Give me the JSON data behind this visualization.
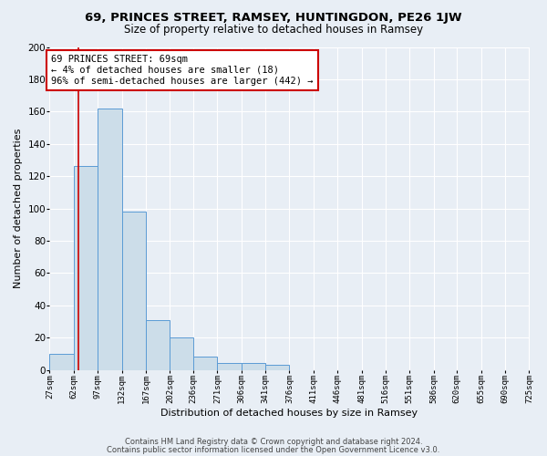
{
  "title1": "69, PRINCES STREET, RAMSEY, HUNTINGDON, PE26 1JW",
  "title2": "Size of property relative to detached houses in Ramsey",
  "xlabel": "Distribution of detached houses by size in Ramsey",
  "ylabel": "Number of detached properties",
  "bar_edges": [
    27,
    62,
    97,
    132,
    167,
    202,
    236,
    271,
    306,
    341,
    376,
    411,
    446,
    481,
    516,
    551,
    586,
    620,
    655,
    690,
    725
  ],
  "bar_heights": [
    10,
    126,
    162,
    98,
    31,
    20,
    8,
    4,
    4,
    3,
    0,
    0,
    0,
    0,
    0,
    0,
    0,
    0,
    0,
    0
  ],
  "bar_color": "#ccdde9",
  "bar_edgecolor": "#5b9bd5",
  "property_size": 69,
  "vline_color": "#cc0000",
  "annotation_line1": "69 PRINCES STREET: 69sqm",
  "annotation_line2": "← 4% of detached houses are smaller (18)",
  "annotation_line3": "96% of semi-detached houses are larger (442) →",
  "annotation_box_color": "#ffffff",
  "annotation_box_edgecolor": "#cc0000",
  "ylim": [
    0,
    200
  ],
  "yticks": [
    0,
    20,
    40,
    60,
    80,
    100,
    120,
    140,
    160,
    180,
    200
  ],
  "footer1": "Contains HM Land Registry data © Crown copyright and database right 2024.",
  "footer2": "Contains public sector information licensed under the Open Government Licence v3.0.",
  "bg_color": "#e8eef5",
  "plot_bg_color": "#e8eef5",
  "grid_color": "#ffffff",
  "title1_fontsize": 9.5,
  "title2_fontsize": 8.5,
  "tick_fontsize": 6.5,
  "ylabel_fontsize": 8,
  "xlabel_fontsize": 8,
  "footer_fontsize": 6,
  "annotation_fontsize": 7.5
}
